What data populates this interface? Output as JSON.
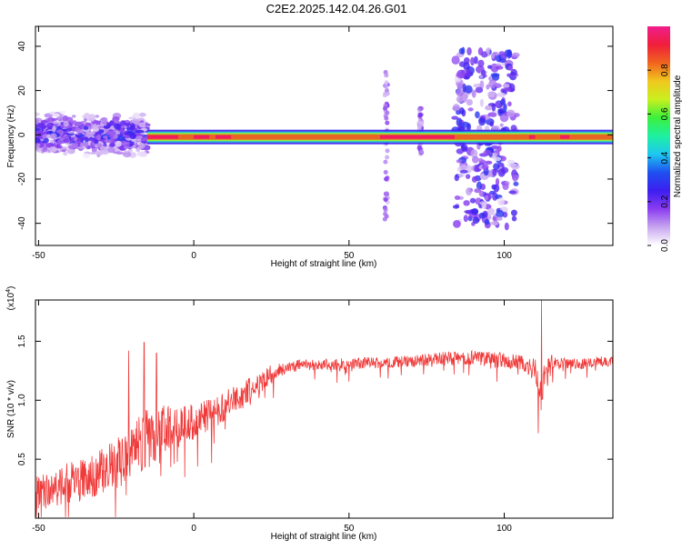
{
  "title": "C2E2.2025.142.04.26.G01",
  "colors": {
    "snr_line": "#f03a3a",
    "frame": "#000000",
    "colormap": [
      "#ffffff",
      "#c8a6f0",
      "#8a3cf0",
      "#3c1ef0",
      "#1e50f0",
      "#1ec8f0",
      "#1ef0a0",
      "#3cf03c",
      "#c8f01e",
      "#f0c81e",
      "#f0641e",
      "#f01e3c",
      "#f01e8c"
    ]
  },
  "chart_data": [
    {
      "type": "heatmap",
      "xlabel": "Height of straight line (km)",
      "ylabel": "Frequency (Hz)",
      "xlim": [
        -51,
        135
      ],
      "ylim": [
        -50,
        49
      ],
      "xticks": [
        -50,
        0,
        50,
        100
      ],
      "yticks": [
        -40,
        -20,
        0,
        20,
        40
      ],
      "colorbar": {
        "label": "Normalized spectral amplitude",
        "range": [
          0.0,
          1.0
        ],
        "ticks": [
          "0.0",
          "0.2",
          "0.4",
          "0.6",
          "0.8"
        ]
      },
      "features": [
        {
          "kind": "scattered-band",
          "x_range": [
            -51,
            -15
          ],
          "freq_range": [
            -12,
            12
          ],
          "peak_amplitude": 0.35
        },
        {
          "kind": "tone",
          "x_range": [
            -15,
            135
          ],
          "freq": -1,
          "peak_amplitude": 1.0
        },
        {
          "kind": "vertical-burst",
          "x_center": 62,
          "freq_range": [
            -42,
            30
          ],
          "peak_amplitude": 0.2
        },
        {
          "kind": "vertical-burst",
          "x_center": 73,
          "freq_range": [
            -10,
            12
          ],
          "peak_amplitude": 0.2
        },
        {
          "kind": "scattered-burst",
          "x_range": [
            84,
            104
          ],
          "freq_range": [
            -42,
            38
          ],
          "peak_amplitude": 0.3
        }
      ]
    },
    {
      "type": "line",
      "xlabel": "Height of straight line (km)",
      "ylabel": "SNR (10 * v/v)",
      "y_multiplier": "(x10",
      "y_multiplier_exp": "4",
      "xlim": [
        -51,
        135
      ],
      "ylim": [
        0,
        1.85
      ],
      "xticks": [
        -50,
        0,
        50,
        100
      ],
      "yticks": [
        0.5,
        1.0,
        1.5
      ],
      "ytick_labels": [
        "0.5",
        "1.0",
        "1.5"
      ],
      "series": [
        {
          "x": [
            -51,
            -45,
            -40,
            -35,
            -30,
            -25,
            -20,
            -15,
            -10,
            -5,
            0,
            5,
            10,
            15,
            20,
            25,
            30,
            35,
            40,
            50,
            60,
            70,
            80,
            90,
            100,
            105,
            110,
            112,
            113,
            115,
            120,
            125,
            130,
            135
          ],
          "y": [
            0.2,
            0.25,
            0.3,
            0.33,
            0.38,
            0.45,
            0.55,
            0.65,
            0.72,
            0.78,
            0.82,
            0.88,
            0.95,
            1.03,
            1.12,
            1.22,
            1.28,
            1.3,
            1.3,
            1.31,
            1.32,
            1.33,
            1.35,
            1.36,
            1.34,
            1.32,
            1.25,
            1.05,
            1.22,
            1.33,
            1.32,
            1.31,
            1.33,
            1.34
          ],
          "noise": [
            0.15,
            0.15,
            0.18,
            0.18,
            0.2,
            0.22,
            0.25,
            0.28,
            0.25,
            0.18,
            0.15,
            0.14,
            0.13,
            0.12,
            0.1,
            0.08,
            0.05,
            0.05,
            0.05,
            0.05,
            0.05,
            0.05,
            0.06,
            0.06,
            0.07,
            0.07,
            0.1,
            0.15,
            0.1,
            0.06,
            0.05,
            0.05,
            0.05,
            0.05
          ],
          "spikes": [
            {
              "x": -21,
              "y": 1.42
            },
            {
              "x": -16,
              "y": 1.49
            },
            {
              "x": -12,
              "y": 1.4
            },
            {
              "x": 112,
              "y": 1.85
            },
            {
              "x": 111,
              "y": 0.72
            }
          ]
        }
      ]
    }
  ]
}
